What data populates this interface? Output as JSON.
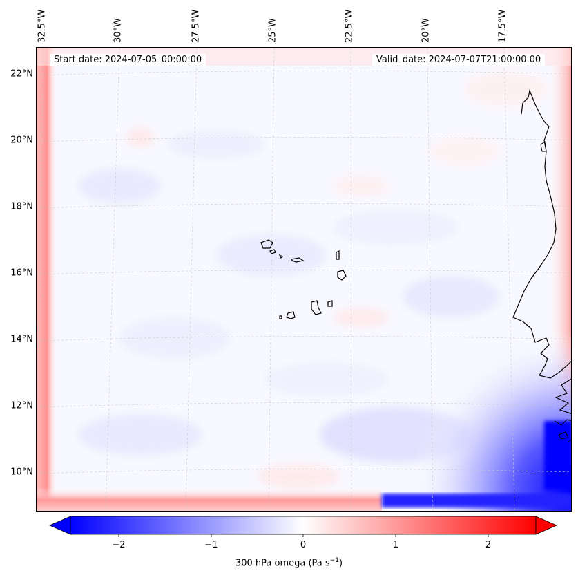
{
  "header": {
    "start_date": "Start date: 2024-07-05_00:00:00",
    "valid_date": "Valid_date: 2024-07-07T21:00:00.00"
  },
  "longitude_labels": [
    "32.5°W",
    "30°W",
    "27.5°W",
    "25°W",
    "22.5°W",
    "20°W",
    "17.5°W"
  ],
  "latitude_labels": [
    "22°N",
    "20°N",
    "18°N",
    "16°N",
    "14°N",
    "12°N",
    "10°N"
  ],
  "colorbar": {
    "label_prefix": "300 hPa omega (Pa s",
    "label_exponent": "−1",
    "label_suffix": ")",
    "ticks": [
      "−2",
      "−1",
      "0",
      "1",
      "2"
    ],
    "vmin": -2.7,
    "vmax": 2.7,
    "colormap": "bwr",
    "low_color": "#0000ff",
    "mid_color": "#ffffff",
    "high_color": "#ff0000"
  }
}
